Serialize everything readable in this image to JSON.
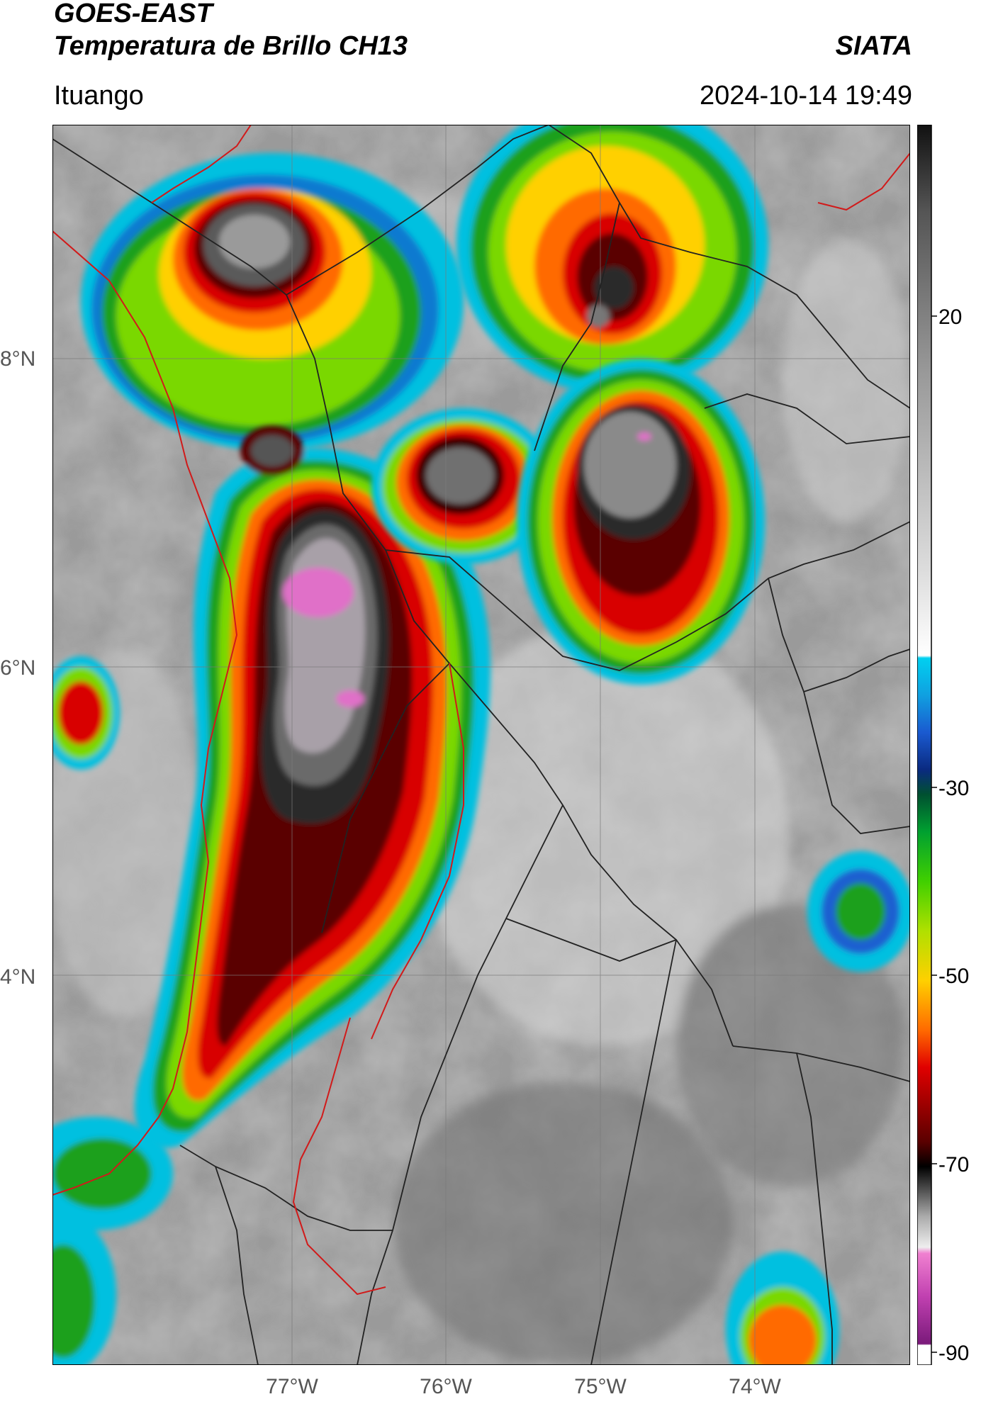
{
  "header": {
    "product": "GOES-EAST",
    "title": "Temperatura de Brillo CH13",
    "organization": "SIATA",
    "location": "Ituango",
    "datetime": "2024-10-14 19:49"
  },
  "map": {
    "lat_labels": [
      "8°N",
      "6°N",
      "4°N"
    ],
    "lon_labels": [
      "77°W",
      "76°W",
      "75°W",
      "74°W"
    ],
    "colors": {
      "background_gray": "#9a9a9a",
      "border_national": "#222222",
      "border_regional": "#d11a1a",
      "gridline": "#7a7a7a"
    }
  },
  "colorbar": {
    "tick_labels": [
      "20",
      "-30",
      "-50",
      "-70",
      "-90"
    ],
    "colors": [
      "#ffffff",
      "#8a1a8a",
      "#e060c0",
      "#dddddd",
      "#555555",
      "#000000",
      "#7a0000",
      "#e00000",
      "#ff8000",
      "#ffe000",
      "#80e000",
      "#00a000",
      "#0060c0",
      "#00c0e0",
      "#ffffff",
      "#888888",
      "#222222"
    ]
  }
}
